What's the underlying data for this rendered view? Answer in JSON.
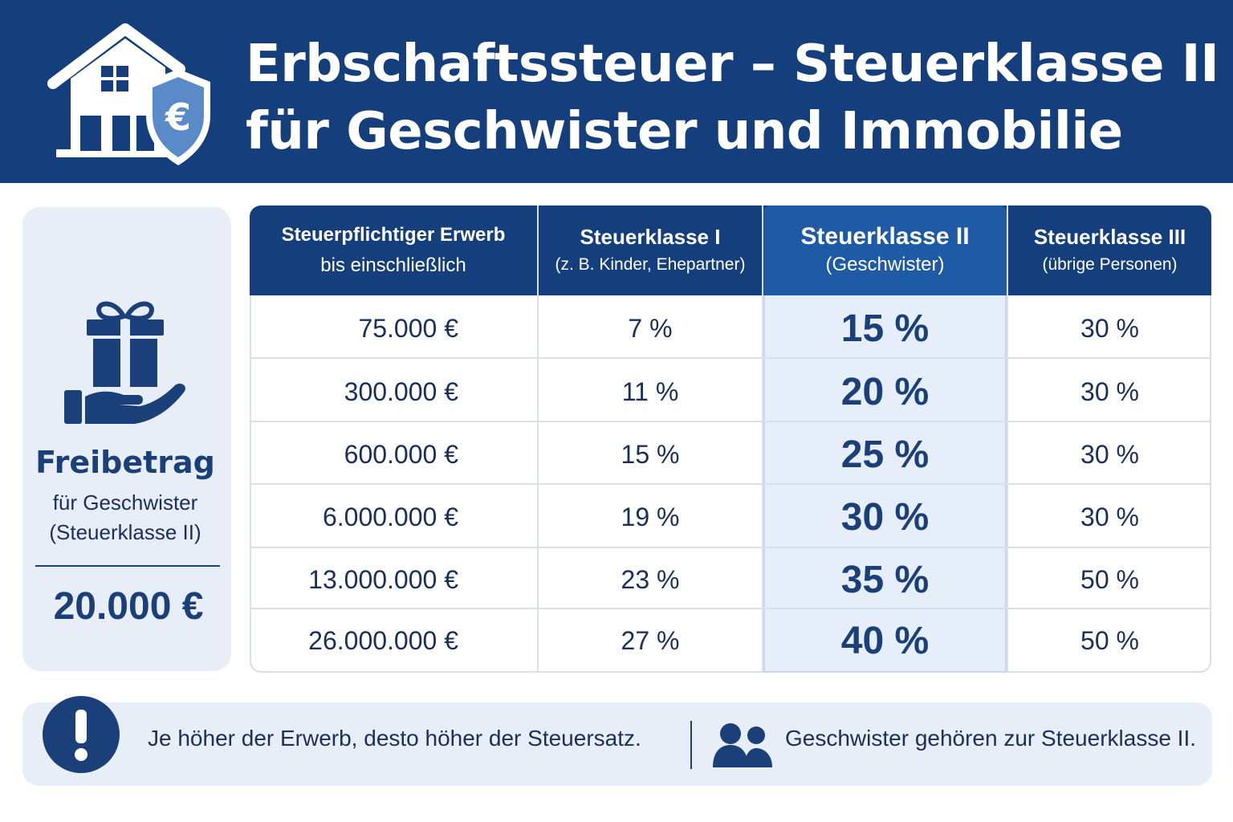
{
  "header": {
    "title_line1": "Erbschaftssteuer – Steuerklasse II",
    "title_line2": "für Geschwister und Immobilie",
    "icons": [
      "house-icon",
      "euro-shield-icon"
    ]
  },
  "freibetrag": {
    "title": "Freibetrag",
    "subtitle_line1": "für Geschwister",
    "subtitle_line2": "(Steuerklasse II)",
    "amount": "20.000 €",
    "icon": "gift-hand-icon"
  },
  "table": {
    "columns": [
      {
        "title": "Steuerpflichtiger Erwerb",
        "subtitle": "bis einschließlich"
      },
      {
        "title": "Steuerklasse I",
        "subtitle": "(z. B. Kinder, Ehepartner)"
      },
      {
        "title": "Steuerklasse II",
        "subtitle": "(Geschwister)"
      },
      {
        "title": "Steuerklasse III",
        "subtitle": "(übrige Personen)"
      }
    ],
    "rows": [
      {
        "amount": "75.000 €",
        "k1": "7 %",
        "k2": "15 %",
        "k3": "30 %"
      },
      {
        "amount": "300.000 €",
        "k1": "11 %",
        "k2": "20 %",
        "k3": "30 %"
      },
      {
        "amount": "600.000 €",
        "k1": "15 %",
        "k2": "25 %",
        "k3": "30 %"
      },
      {
        "amount": "6.000.000 €",
        "k1": "19 %",
        "k2": "30 %",
        "k3": "30 %"
      },
      {
        "amount": "13.000.000 €",
        "k1": "23 %",
        "k2": "35 %",
        "k3": "50 %"
      },
      {
        "amount": "26.000.000 €",
        "k1": "27 %",
        "k2": "40 %",
        "k3": "50 %"
      }
    ]
  },
  "footer": {
    "note_left": "Je höher der Erwerb, desto höher der Steuersatz.",
    "note_right": "Geschwister gehören zur Steuerklasse II.",
    "icons": [
      "exclamation-icon",
      "people-icon"
    ]
  },
  "colors": {
    "primary": "#143f7c",
    "highlight": "#1f5aa6",
    "highlight_bg": "#e6eef9",
    "card_bg": "#e8eef8",
    "text": "#1b2f5b"
  }
}
